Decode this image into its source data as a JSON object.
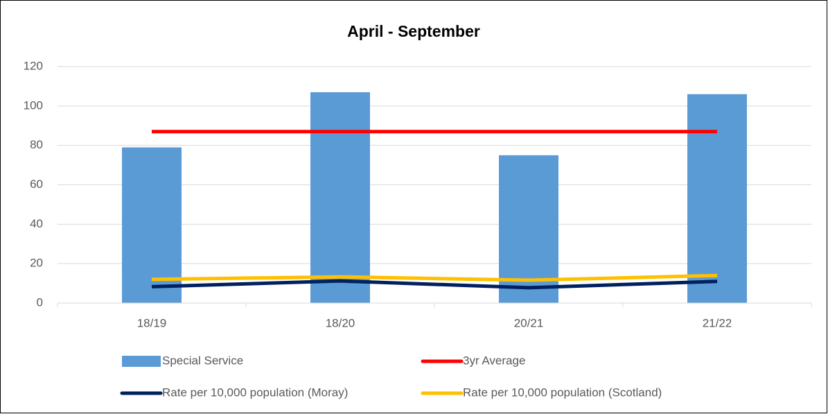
{
  "chart_data": {
    "type": "bar",
    "title": "April - September",
    "categories": [
      "18/19",
      "18/20",
      "20/21",
      "21/22"
    ],
    "series": [
      {
        "name": "Special Service",
        "type": "bar",
        "color": "#5b9bd5",
        "values": [
          79,
          107,
          75,
          106
        ]
      },
      {
        "name": "3yr Average",
        "type": "line",
        "color": "#ff0000",
        "values": [
          87,
          87,
          87,
          87
        ]
      },
      {
        "name": "Rate per 10,000 population (Moray)",
        "type": "line",
        "color": "#002060",
        "values": [
          8.3,
          11.2,
          7.8,
          11
        ]
      },
      {
        "name": "Rate per 10,000 population (Scotland)",
        "type": "line",
        "color": "#ffc000",
        "values": [
          12,
          13.3,
          11.6,
          14
        ]
      }
    ],
    "ylim": [
      0,
      120
    ],
    "yticks": [
      0,
      20,
      40,
      60,
      80,
      100,
      120
    ],
    "grid": true,
    "legend": "bottom"
  }
}
